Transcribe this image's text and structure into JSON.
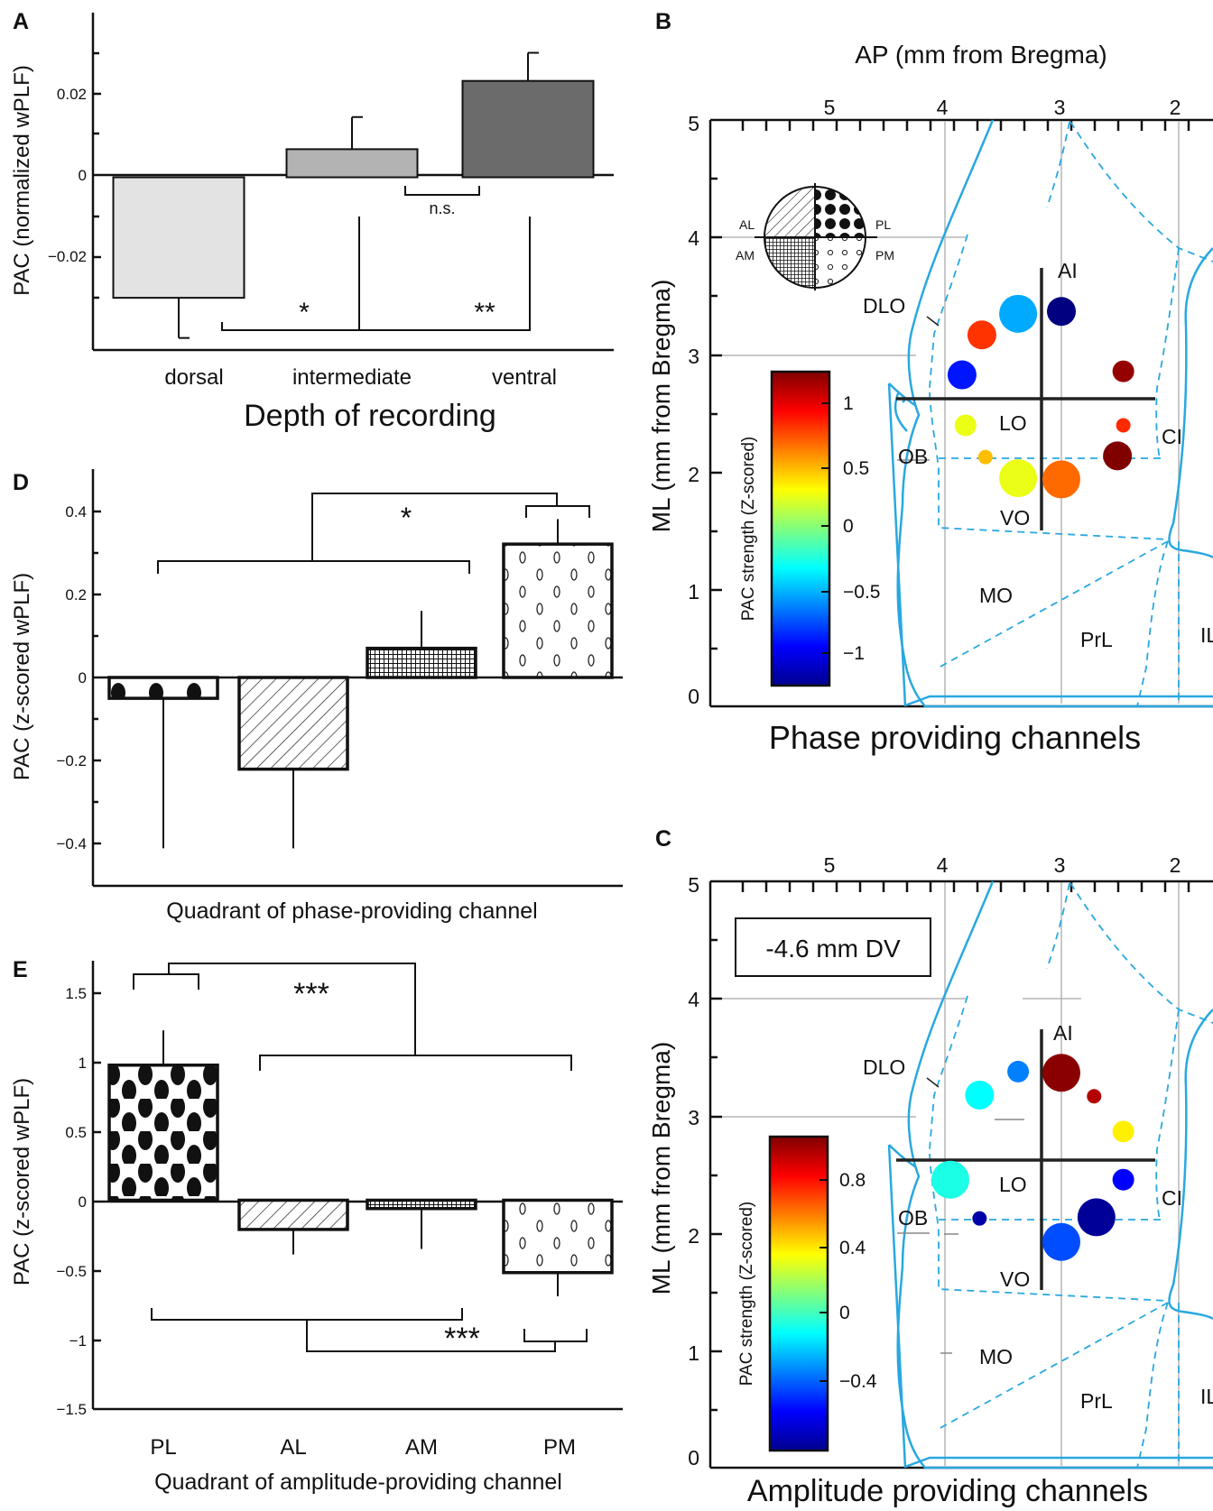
{
  "panel_labels": {
    "a": "A",
    "b": "B",
    "c": "C",
    "d": "D",
    "e": "E"
  },
  "panel_a": {
    "ylabel": "PAC (normalized wPLF)",
    "xlabel": "Depth of recording",
    "yticks": [
      "0.02",
      "0",
      "−0.02"
    ],
    "sig": {
      "star1": "*",
      "star2": "**",
      "ns": "n.s."
    }
  },
  "panel_d": {
    "ylabel": "PAC (z-scored wPLF)",
    "xlabel": "Quadrant of phase-providing channel",
    "yticks": [
      "0.4",
      "0.2",
      "0",
      "−0.2",
      "−0.4"
    ],
    "sig": "*"
  },
  "panel_e": {
    "ylabel": "PAC (z-scored wPLF)",
    "xlabel": "Quadrant of amplitude-providing channel",
    "yticks": [
      "1.5",
      "1",
      "0.5",
      "0",
      "−0.5",
      "−1",
      "−1.5"
    ],
    "sig_top": "***",
    "sig_bottom": "***"
  },
  "panel_b": {
    "top_title": "AP (mm from Bregma)",
    "ylabel": "ML (mm from Bregma)",
    "bottom_title": "Phase providing channels",
    "colorbar_label": "PAC strength (Z-scored)",
    "colorbar_ticks": [
      "1",
      "0.5",
      "0",
      "−0.5",
      "−1"
    ],
    "quadrant_labels": {
      "al": "AL",
      "pl": "PL",
      "am": "AM",
      "pm": "PM"
    }
  },
  "panel_c": {
    "ylabel": "ML (mm from Bregma)",
    "bottom_title": "Amplitude providing channels",
    "dv_box": "-4.6 mm DV",
    "colorbar_label": "PAC strength (Z-scored)",
    "colorbar_ticks": [
      "0.8",
      "0.4",
      "0",
      "−0.4"
    ]
  },
  "map_axes": {
    "ap_ticks": [
      "5",
      "4",
      "3",
      "2"
    ],
    "ml_ticks": [
      "5",
      "4",
      "3",
      "2",
      "1",
      "0"
    ]
  },
  "regions": {
    "ai": "AI",
    "dlo": "DLO",
    "lo": "LO",
    "vo": "VO",
    "ob": "OB",
    "ci": "CI",
    "mo": "MO",
    "prl": "PrL",
    "il": "IL"
  },
  "chart_data": [
    {
      "type": "bar",
      "id": "A",
      "categories": [
        "dorsal",
        "intermediate",
        "ventral"
      ],
      "values": [
        -0.03,
        0.007,
        0.024
      ],
      "errors": [
        0.01,
        0.008,
        0.007
      ],
      "colors": [
        "#e3e3e3",
        "#b3b3b3",
        "#6b6b6b"
      ],
      "xlabel": "Depth of recording",
      "ylabel": "PAC (normalized wPLF)",
      "ylim": [
        -0.043,
        0.041
      ],
      "significance": [
        {
          "pair": [
            "dorsal",
            "intermediate"
          ],
          "label": "*"
        },
        {
          "pair": [
            "intermediate",
            "ventral"
          ],
          "label": "**"
        },
        {
          "pair": [
            "intermediate",
            "ventral"
          ],
          "label": "n.s."
        }
      ]
    },
    {
      "type": "bar",
      "id": "D",
      "categories": [
        "PL",
        "AL",
        "AM",
        "PM"
      ],
      "values": [
        -0.05,
        -0.22,
        0.07,
        0.32
      ],
      "errors": [
        0.36,
        0.19,
        0.09,
        0.06
      ],
      "patterns": [
        "large-dots",
        "diagonal-hatch",
        "grid",
        "small-circles"
      ],
      "xlabel": "Quadrant of phase-providing channel",
      "ylabel": "PAC (z-scored wPLF)",
      "ylim": [
        -0.5,
        0.5
      ],
      "significance": [
        {
          "pair": [
            [
              "PL",
              "AL",
              "AM"
            ],
            [
              "PM"
            ]
          ],
          "label": "*"
        }
      ]
    },
    {
      "type": "bar",
      "id": "E",
      "categories": [
        "PL",
        "AL",
        "AM",
        "PM"
      ],
      "values": [
        0.97,
        -0.21,
        -0.06,
        -0.52
      ],
      "errors": [
        0.25,
        0.18,
        0.29,
        0.17
      ],
      "patterns": [
        "large-dots",
        "diagonal-hatch",
        "grid",
        "small-circles"
      ],
      "xlabel": "Quadrant of amplitude-providing channel",
      "ylabel": "PAC (z-scored wPLF)",
      "ylim": [
        -1.5,
        1.72
      ],
      "significance": [
        {
          "pair": [
            [
              "PL"
            ],
            [
              "AL",
              "AM",
              "PM"
            ]
          ],
          "label": "***"
        },
        {
          "pair": [
            [
              "PL",
              "AL",
              "AM"
            ],
            [
              "PM"
            ]
          ],
          "label": "***"
        }
      ]
    },
    {
      "type": "scatter",
      "id": "B",
      "title": "Phase providing channels",
      "xlabel": "AP (mm from Bregma)",
      "ylabel": "ML (mm from Bregma)",
      "xlim": [
        5.0,
        1.7
      ],
      "ylim": [
        0,
        5
      ],
      "color_scale": {
        "label": "PAC strength (Z-scored)",
        "range": [
          -1.2,
          1.2
        ]
      },
      "points": [
        {
          "ap": 3.37,
          "ml": 3.35,
          "z": -0.5,
          "size": "large"
        },
        {
          "ap": 3.0,
          "ml": 3.37,
          "z": -1.2,
          "size": "medium"
        },
        {
          "ap": 3.68,
          "ml": 3.17,
          "z": 0.78,
          "size": "medium"
        },
        {
          "ap": 3.85,
          "ml": 2.83,
          "z": -0.85,
          "size": "medium"
        },
        {
          "ap": 2.47,
          "ml": 2.86,
          "z": 1.15,
          "size": "small"
        },
        {
          "ap": 3.82,
          "ml": 2.4,
          "z": 0.25,
          "size": "small"
        },
        {
          "ap": 2.47,
          "ml": 2.4,
          "z": 0.8,
          "size": "tiny"
        },
        {
          "ap": 3.65,
          "ml": 2.13,
          "z": 0.45,
          "size": "tiny"
        },
        {
          "ap": 2.52,
          "ml": 2.14,
          "z": 1.2,
          "size": "medium"
        },
        {
          "ap": 3.37,
          "ml": 1.95,
          "z": 0.25,
          "size": "large"
        },
        {
          "ap": 3.0,
          "ml": 1.94,
          "z": 0.65,
          "size": "large"
        }
      ]
    },
    {
      "type": "scatter",
      "id": "C",
      "title": "Amplitude providing channels",
      "xlabel": "AP (mm from Bregma)",
      "ylabel": "ML (mm from Bregma)",
      "xlim": [
        5.0,
        1.7
      ],
      "ylim": [
        0,
        5
      ],
      "color_scale": {
        "label": "PAC strength (Z-scored)",
        "range": [
          -1.0,
          1.0
        ]
      },
      "points": [
        {
          "ap": 3.0,
          "ml": 3.37,
          "z": 0.98,
          "size": "large"
        },
        {
          "ap": 3.37,
          "ml": 3.38,
          "z": -0.5,
          "size": "small"
        },
        {
          "ap": 3.7,
          "ml": 3.18,
          "z": -0.25,
          "size": "medium"
        },
        {
          "ap": 2.72,
          "ml": 3.17,
          "z": 0.9,
          "size": "tiny"
        },
        {
          "ap": 2.47,
          "ml": 2.87,
          "z": 0.28,
          "size": "small"
        },
        {
          "ap": 3.95,
          "ml": 2.46,
          "z": -0.2,
          "size": "large"
        },
        {
          "ap": 2.47,
          "ml": 2.46,
          "z": -0.75,
          "size": "small"
        },
        {
          "ap": 3.7,
          "ml": 2.13,
          "z": -0.92,
          "size": "tiny"
        },
        {
          "ap": 2.7,
          "ml": 2.14,
          "z": -0.95,
          "size": "large"
        },
        {
          "ap": 3.0,
          "ml": 1.93,
          "z": -0.6,
          "size": "large"
        }
      ]
    }
  ]
}
